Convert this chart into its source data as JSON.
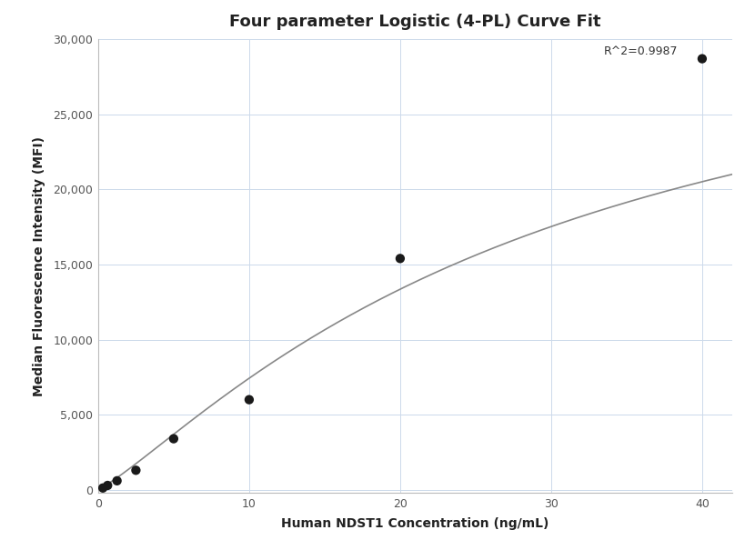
{
  "title": "Four parameter Logistic (4-PL) Curve Fit",
  "xlabel": "Human NDST1 Concentration (ng/mL)",
  "ylabel": "Median Fluorescence Intensity (MFI)",
  "x_data": [
    0.313,
    0.625,
    1.25,
    2.5,
    5.0,
    10.0,
    20.0,
    40.0
  ],
  "y_data": [
    120,
    290,
    600,
    1300,
    3400,
    6000,
    15400,
    28700
  ],
  "r_squared": "R^2=0.9987",
  "xlim": [
    0,
    42
  ],
  "ylim": [
    -200,
    30000
  ],
  "xticks": [
    0,
    10,
    20,
    30,
    40
  ],
  "yticks": [
    0,
    5000,
    10000,
    15000,
    20000,
    25000,
    30000
  ],
  "background_color": "#ffffff",
  "grid_color": "#ccd9ea",
  "line_color": "#888888",
  "dot_color": "#1a1a1a",
  "dot_size": 55,
  "title_fontsize": 13,
  "label_fontsize": 10,
  "tick_fontsize": 9,
  "annotation_fontsize": 9
}
